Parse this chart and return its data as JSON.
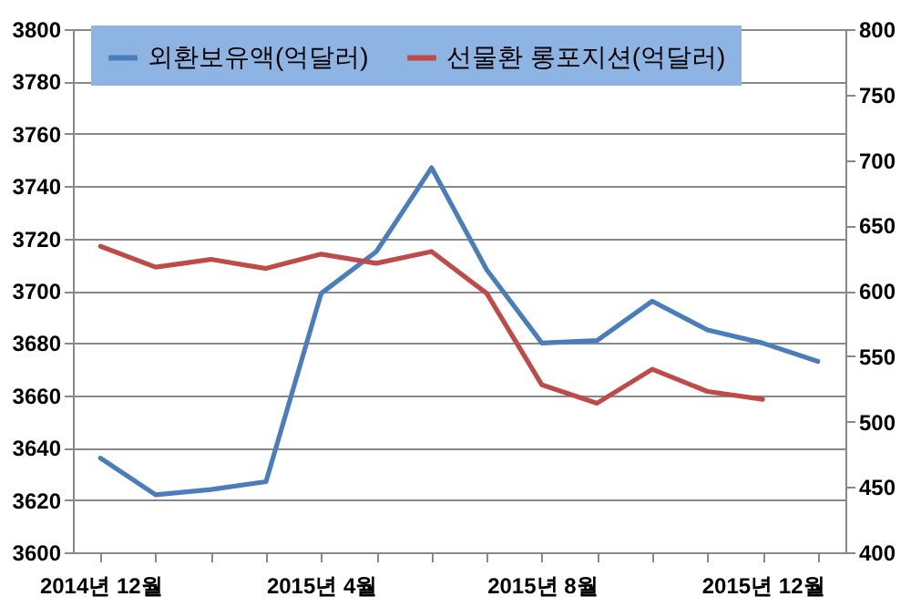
{
  "chart_data": {
    "type": "line",
    "categories": [
      "2014년 12월",
      null,
      null,
      null,
      "2015년 4월",
      null,
      null,
      null,
      "2015년 8월",
      null,
      null,
      null,
      "2015년 12월",
      null
    ],
    "series": [
      {
        "name": "외환보유액(억달러)",
        "color": "#4a7ebb",
        "values": [
          3636,
          3622,
          3624,
          3627,
          3699,
          3715,
          3747,
          3708,
          3680,
          3681,
          3696,
          3685,
          3680,
          3673
        ]
      },
      {
        "name": "선물환 롱포지션(억달러)",
        "color": "#be4b48",
        "axis": "y2",
        "values": [
          634,
          618,
          624,
          617,
          628,
          621,
          630,
          598,
          528,
          514,
          540,
          523,
          517,
          null
        ]
      }
    ],
    "ylim": [
      3600,
      3800
    ],
    "yticks": [
      3600,
      3620,
      3640,
      3660,
      3680,
      3700,
      3720,
      3740,
      3760,
      3780,
      3800
    ],
    "y2lim": [
      400,
      800
    ],
    "y2ticks": [
      400,
      450,
      500,
      550,
      600,
      650,
      700,
      750,
      800
    ],
    "grid": "y",
    "legend": "top"
  }
}
